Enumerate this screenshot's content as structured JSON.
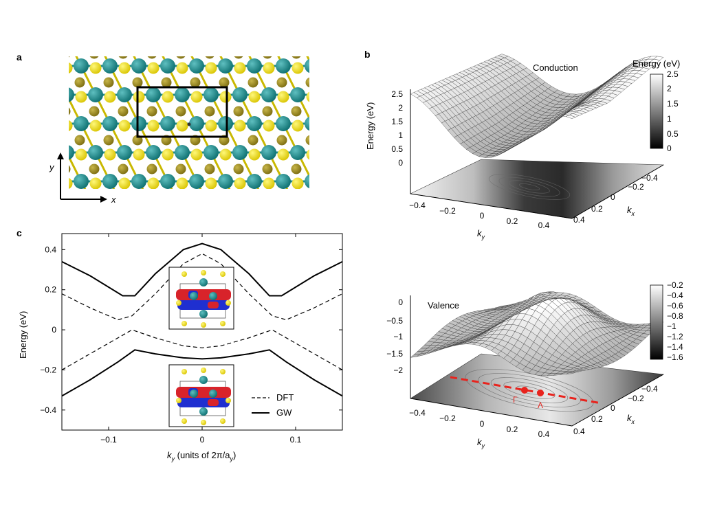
{
  "panel_labels": {
    "a": "a",
    "b": "b",
    "c": "c"
  },
  "panel_a": {
    "x_axis_label": "x",
    "y_axis_label": "y"
  },
  "panel_b_top": {
    "title": "Conduction",
    "z_axis_label": "Energy (eV)",
    "z_ticks": [
      "2.5",
      "2",
      "1.5",
      "1",
      "0.5",
      "0"
    ],
    "colorbar_title": "Energy (eV)",
    "colorbar_ticks": [
      "2.5",
      "2",
      "1.5",
      "1",
      "0.5",
      "0"
    ],
    "ky_label": "k",
    "ky_sub": "y",
    "ky_ticks": [
      "−0.4",
      "−0.2",
      "0",
      "0.2",
      "0.4"
    ],
    "kx_label": "k",
    "kx_sub": "x",
    "kx_ticks": [
      "−0.4",
      "−0.2",
      "0",
      "0.2",
      "0.4"
    ]
  },
  "panel_b_bottom": {
    "title": "Valence",
    "z_ticks": [
      "0",
      "−0.5",
      "−1",
      "−1.5",
      "−2"
    ],
    "colorbar_ticks": [
      "−0.2",
      "−0.4",
      "−0.6",
      "−0.8",
      "−1",
      "−1.2",
      "−1.4",
      "−1.6"
    ],
    "ky_label": "k",
    "ky_sub": "y",
    "ky_ticks": [
      "−0.4",
      "−0.2",
      "0",
      "0.2",
      "0.4"
    ],
    "kx_label": "k",
    "kx_sub": "x",
    "kx_ticks": [
      "−0.4",
      "−0.2",
      "0",
      "0.2",
      "0.4"
    ],
    "point_gamma": "Γ",
    "point_lambda": "Λ",
    "path_color": "#e8231d"
  },
  "chart_data": {
    "type": "line",
    "xlabel_k": "k",
    "xlabel_sub": "y",
    "xlabel_rest": " (units of 2π/a",
    "xlabel_sub2": "y",
    "xlabel_end": ")",
    "ylabel": "Energy (eV)",
    "xlim": [
      -0.15,
      0.15
    ],
    "ylim": [
      -0.5,
      0.48
    ],
    "x_ticks": [
      -0.1,
      0,
      0.1
    ],
    "x_tick_labels": [
      "−0.1",
      "0",
      "0.1"
    ],
    "y_ticks": [
      -0.4,
      -0.2,
      0,
      0.2,
      0.4
    ],
    "y_tick_labels": [
      "−0.4",
      "−0.2",
      "0",
      "0.2",
      "0.4"
    ],
    "legend": [
      "DFT",
      "GW"
    ],
    "legend_position": "bottom-right",
    "series": [
      {
        "name": "GW",
        "style": "solid",
        "x": [
          -0.15,
          -0.12,
          -0.085,
          -0.072,
          -0.05,
          -0.02,
          0,
          0.02,
          0.05,
          0.072,
          0.085,
          0.12,
          0.15
        ],
        "y": [
          0.34,
          0.27,
          0.17,
          0.17,
          0.28,
          0.4,
          0.43,
          0.4,
          0.28,
          0.17,
          0.17,
          0.27,
          0.34
        ]
      },
      {
        "name": "DFT",
        "style": "dashed",
        "x": [
          -0.15,
          -0.12,
          -0.09,
          -0.075,
          -0.05,
          -0.02,
          0,
          0.02,
          0.05,
          0.075,
          0.09,
          0.12,
          0.15
        ],
        "y": [
          0.18,
          0.11,
          0.05,
          0.07,
          0.18,
          0.33,
          0.38,
          0.33,
          0.18,
          0.07,
          0.05,
          0.11,
          0.18
        ]
      },
      {
        "name": "DFT",
        "style": "dashed",
        "x": [
          -0.15,
          -0.12,
          -0.09,
          -0.075,
          -0.05,
          -0.02,
          0,
          0.02,
          0.05,
          0.075,
          0.09,
          0.12,
          0.15
        ],
        "y": [
          -0.2,
          -0.12,
          -0.04,
          0.0,
          -0.04,
          -0.08,
          -0.09,
          -0.08,
          -0.04,
          0.0,
          -0.04,
          -0.12,
          -0.2
        ]
      },
      {
        "name": "GW",
        "style": "solid",
        "x": [
          -0.15,
          -0.12,
          -0.09,
          -0.072,
          -0.05,
          -0.02,
          0,
          0.02,
          0.05,
          0.072,
          0.09,
          0.12,
          0.15
        ],
        "y": [
          -0.33,
          -0.25,
          -0.16,
          -0.1,
          -0.12,
          -0.14,
          -0.145,
          -0.14,
          -0.12,
          -0.1,
          -0.16,
          -0.25,
          -0.33
        ]
      }
    ]
  }
}
